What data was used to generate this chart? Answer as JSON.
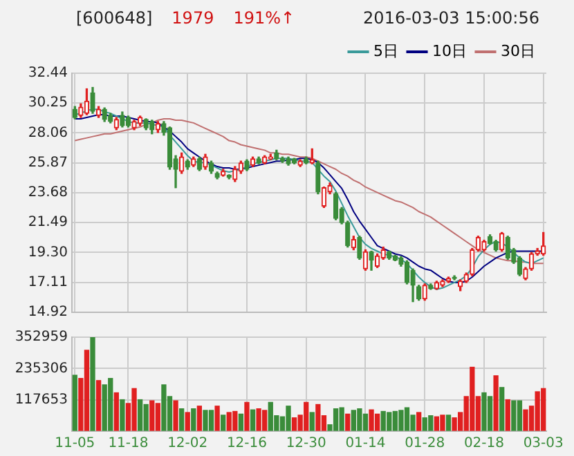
{
  "chart_data": [
    {
      "type": "candlestick",
      "title": "[600648]",
      "annotations": [
        "1979",
        "191%↑",
        "2016-03-03 15:00:56"
      ],
      "categories": [
        null,
        null,
        null,
        null,
        null,
        null,
        null,
        null,
        null,
        null,
        null,
        null,
        null,
        null,
        null,
        null,
        null,
        null,
        null,
        null,
        null,
        null,
        null,
        null,
        null,
        null,
        null,
        null,
        null,
        null,
        null,
        null,
        null,
        null,
        null,
        null,
        null,
        null,
        null,
        null,
        null,
        null,
        null,
        null,
        null,
        null,
        null,
        null,
        null,
        null,
        null,
        null,
        null,
        null,
        null,
        null,
        null,
        null,
        null,
        null,
        null,
        null,
        null,
        null,
        null,
        null,
        null,
        null,
        null,
        null,
        null,
        null,
        null,
        null,
        null,
        null,
        null,
        null,
        null,
        null
      ],
      "ohlc": [
        [
          29.8,
          30.0,
          29.1,
          29.2
        ],
        [
          29.35,
          30.2,
          29.2,
          29.95
        ],
        [
          29.5,
          31.3,
          29.4,
          30.4
        ],
        [
          31.0,
          31.4,
          29.5,
          29.65
        ],
        [
          29.35,
          30.0,
          29.2,
          29.8
        ],
        [
          29.8,
          29.9,
          28.9,
          29.05
        ],
        [
          29.35,
          29.5,
          28.8,
          28.9
        ],
        [
          28.44,
          29.2,
          28.3,
          29.05
        ],
        [
          29.35,
          29.6,
          28.5,
          28.6
        ],
        [
          29.2,
          29.3,
          28.5,
          28.6
        ],
        [
          28.44,
          29.0,
          28.3,
          28.9
        ],
        [
          28.75,
          29.3,
          28.6,
          29.2
        ],
        [
          29.05,
          29.1,
          28.3,
          28.44
        ],
        [
          28.9,
          29.0,
          28.0,
          28.3
        ],
        [
          28.3,
          28.9,
          28.1,
          28.75
        ],
        [
          28.75,
          28.9,
          27.9,
          28.1
        ],
        [
          28.44,
          28.5,
          25.4,
          25.56
        ],
        [
          26.17,
          26.4,
          24.05,
          25.4
        ],
        [
          25.26,
          26.6,
          25.1,
          26.3
        ],
        [
          26.0,
          26.1,
          25.4,
          25.56
        ],
        [
          25.7,
          26.3,
          25.6,
          26.17
        ],
        [
          26.17,
          26.3,
          25.3,
          25.4
        ],
        [
          25.56,
          26.5,
          25.4,
          26.3
        ],
        [
          25.86,
          26.0,
          25.1,
          25.26
        ],
        [
          25.1,
          25.2,
          24.7,
          24.8
        ],
        [
          24.96,
          25.4,
          24.9,
          25.26
        ],
        [
          24.96,
          25.0,
          24.7,
          24.8
        ],
        [
          24.65,
          25.6,
          24.5,
          25.4
        ],
        [
          25.26,
          26.0,
          25.1,
          25.86
        ],
        [
          26.0,
          26.1,
          25.3,
          25.4
        ],
        [
          25.7,
          26.3,
          25.6,
          26.17
        ],
        [
          26.17,
          26.3,
          25.8,
          25.86
        ],
        [
          25.86,
          26.4,
          25.8,
          26.3
        ],
        [
          26.17,
          26.5,
          26.1,
          26.3
        ],
        [
          26.6,
          26.8,
          26.1,
          26.17
        ],
        [
          26.2,
          26.3,
          25.9,
          26.0
        ],
        [
          26.17,
          26.3,
          25.7,
          25.8
        ],
        [
          26.17,
          26.2,
          25.8,
          25.86
        ],
        [
          25.7,
          26.1,
          25.6,
          26.0
        ],
        [
          26.17,
          26.3,
          25.8,
          25.86
        ],
        [
          25.86,
          26.9,
          25.8,
          26.1
        ],
        [
          25.86,
          26.0,
          23.6,
          23.75
        ],
        [
          22.7,
          24.1,
          22.6,
          24.05
        ],
        [
          23.75,
          24.4,
          23.6,
          24.2
        ],
        [
          23.6,
          23.7,
          21.7,
          21.8
        ],
        [
          22.5,
          22.6,
          21.4,
          21.5
        ],
        [
          21.5,
          21.6,
          19.7,
          19.8
        ],
        [
          19.65,
          20.5,
          19.5,
          20.26
        ],
        [
          20.4,
          20.5,
          18.8,
          18.9
        ],
        [
          18.1,
          19.5,
          18.0,
          19.35
        ],
        [
          19.35,
          19.4,
          18.0,
          18.75
        ],
        [
          18.3,
          19.2,
          18.2,
          19.05
        ],
        [
          18.9,
          19.7,
          18.8,
          19.5
        ],
        [
          19.35,
          19.4,
          18.8,
          18.9
        ],
        [
          19.05,
          19.1,
          18.7,
          18.75
        ],
        [
          18.9,
          19.0,
          18.3,
          18.45
        ],
        [
          18.6,
          18.7,
          17.0,
          17.1
        ],
        [
          18.0,
          18.1,
          15.7,
          16.9
        ],
        [
          16.8,
          16.9,
          15.8,
          15.9
        ],
        [
          15.9,
          17.0,
          15.8,
          16.9
        ],
        [
          16.9,
          17.0,
          16.6,
          16.65
        ],
        [
          16.65,
          17.2,
          16.6,
          17.1
        ],
        [
          16.9,
          17.3,
          16.8,
          17.2
        ],
        [
          17.2,
          17.5,
          17.1,
          17.4
        ],
        [
          17.5,
          17.6,
          17.3,
          17.4
        ],
        [
          16.8,
          17.3,
          16.5,
          17.2
        ],
        [
          17.2,
          17.8,
          17.1,
          17.7
        ],
        [
          17.7,
          19.6,
          17.6,
          19.5
        ],
        [
          19.5,
          20.5,
          19.4,
          20.4
        ],
        [
          19.5,
          20.2,
          19.4,
          20.1
        ],
        [
          20.47,
          20.6,
          19.9,
          19.96
        ],
        [
          20.1,
          20.2,
          19.4,
          19.5
        ],
        [
          19.5,
          20.77,
          19.4,
          20.7
        ],
        [
          20.4,
          20.5,
          18.8,
          18.9
        ],
        [
          19.5,
          19.6,
          18.5,
          18.6
        ],
        [
          18.9,
          19.0,
          17.6,
          17.7
        ],
        [
          17.4,
          18.2,
          17.3,
          18.1
        ],
        [
          18.1,
          19.3,
          18.0,
          19.2
        ],
        [
          19.2,
          19.6,
          19.1,
          19.42
        ],
        [
          19.2,
          20.77,
          19.1,
          19.79
        ]
      ],
      "colors": [
        "#3a8c3a",
        "#e02020",
        "#e02020",
        "#3a8c3a",
        "#e02020",
        "#3a8c3a",
        "#3a8c3a",
        "#e02020",
        "#3a8c3a",
        "#3a8c3a",
        "#e02020",
        "#e02020",
        "#3a8c3a",
        "#3a8c3a",
        "#e02020",
        "#3a8c3a",
        "#3a8c3a",
        "#3a8c3a",
        "#e02020",
        "#3a8c3a",
        "#e02020",
        "#3a8c3a",
        "#e02020",
        "#3a8c3a",
        "#3a8c3a",
        "#e02020",
        "#3a8c3a",
        "#e02020",
        "#e02020",
        "#3a8c3a",
        "#e02020",
        "#3a8c3a",
        "#e02020",
        "#e02020",
        "#3a8c3a",
        "#3a8c3a",
        "#3a8c3a",
        "#3a8c3a",
        "#e02020",
        "#3a8c3a",
        "#e02020",
        "#3a8c3a",
        "#e02020",
        "#e02020",
        "#3a8c3a",
        "#3a8c3a",
        "#3a8c3a",
        "#e02020",
        "#3a8c3a",
        "#e02020",
        "#3a8c3a",
        "#e02020",
        "#e02020",
        "#3a8c3a",
        "#3a8c3a",
        "#3a8c3a",
        "#3a8c3a",
        "#3a8c3a",
        "#3a8c3a",
        "#e02020",
        "#3a8c3a",
        "#e02020",
        "#e02020",
        "#e02020",
        "#3a8c3a",
        "#e02020",
        "#e02020",
        "#e02020",
        "#e02020",
        "#e02020",
        "#3a8c3a",
        "#3a8c3a",
        "#e02020",
        "#3a8c3a",
        "#3a8c3a",
        "#3a8c3a",
        "#e02020",
        "#e02020",
        "#e02020",
        "#e02020"
      ],
      "series": [
        {
          "type": "line",
          "name": "5日",
          "color": "#3a9a9a",
          "values": [
            29.4,
            29.5,
            29.7,
            29.8,
            29.8,
            29.6,
            29.5,
            29.3,
            29.1,
            28.9,
            28.8,
            28.8,
            28.8,
            28.7,
            28.6,
            28.5,
            27.9,
            27.4,
            26.9,
            26.4,
            26.0,
            25.9,
            25.9,
            25.7,
            25.5,
            25.3,
            25.2,
            25.3,
            25.4,
            25.6,
            25.8,
            25.9,
            26.0,
            26.1,
            26.2,
            26.2,
            26.2,
            26.1,
            26.0,
            26.0,
            25.9,
            25.4,
            24.9,
            24.5,
            23.8,
            22.9,
            22.0,
            21.2,
            20.4,
            19.9,
            19.6,
            19.4,
            19.2,
            19.1,
            19.0,
            18.8,
            18.5,
            18.0,
            17.5,
            17.1,
            16.8,
            16.6,
            16.7,
            16.9,
            17.1,
            17.3,
            17.6,
            18.2,
            19.0,
            19.5,
            19.9,
            20.1,
            20.0,
            19.7,
            19.3,
            18.9,
            18.6,
            18.5,
            18.7,
            18.9
          ]
        },
        {
          "type": "line",
          "name": "10日",
          "color": "#000080",
          "values": [
            29.1,
            29.1,
            29.2,
            29.3,
            29.4,
            29.4,
            29.3,
            29.3,
            29.3,
            29.2,
            29.1,
            29.0,
            28.9,
            28.9,
            28.8,
            28.5,
            28.2,
            27.8,
            27.4,
            26.9,
            26.6,
            26.3,
            26.0,
            25.8,
            25.6,
            25.5,
            25.5,
            25.4,
            25.4,
            25.5,
            25.6,
            25.7,
            25.8,
            25.9,
            26.0,
            26.0,
            26.1,
            26.1,
            26.2,
            26.2,
            26.1,
            25.9,
            25.5,
            25.0,
            24.5,
            24.0,
            23.2,
            22.3,
            21.6,
            21.0,
            20.4,
            19.8,
            19.6,
            19.4,
            19.2,
            19.1,
            18.9,
            18.6,
            18.3,
            18.1,
            18.0,
            17.7,
            17.4,
            17.2,
            17.1,
            17.1,
            17.2,
            17.5,
            17.9,
            18.3,
            18.6,
            18.9,
            19.1,
            19.3,
            19.4,
            19.4,
            19.4,
            19.4,
            19.4,
            19.4
          ]
        },
        {
          "type": "line",
          "name": "30日",
          "color": "#c07070",
          "values": [
            27.5,
            27.6,
            27.7,
            27.8,
            27.9,
            28.0,
            28.0,
            28.1,
            28.2,
            28.3,
            28.4,
            28.5,
            28.7,
            28.8,
            29.0,
            29.1,
            29.1,
            29.0,
            29.0,
            28.9,
            28.8,
            28.6,
            28.4,
            28.2,
            28.0,
            27.8,
            27.5,
            27.4,
            27.2,
            27.1,
            27.0,
            26.9,
            26.8,
            26.6,
            26.6,
            26.5,
            26.5,
            26.4,
            26.3,
            26.3,
            26.2,
            26.0,
            25.8,
            25.6,
            25.4,
            25.1,
            24.9,
            24.6,
            24.4,
            24.1,
            23.9,
            23.7,
            23.5,
            23.3,
            23.1,
            23.0,
            22.8,
            22.6,
            22.3,
            22.1,
            21.9,
            21.6,
            21.3,
            21.0,
            20.7,
            20.4,
            20.1,
            19.8,
            19.5,
            19.3,
            19.1,
            18.9,
            18.8,
            18.7,
            18.7,
            18.6,
            18.6,
            18.5,
            18.5,
            18.5
          ]
        }
      ],
      "ylim": [
        14.92,
        32.44
      ],
      "yticks": [
        14.92,
        17.11,
        {
          "value": 19.3,
          "label": "19.30"
        },
        21.49,
        23.68,
        25.87,
        28.06,
        30.25,
        32.44
      ],
      "grid": true,
      "tick_labels": "y",
      "legend": "top right"
    },
    {
      "type": "bar",
      "categories": [
        "11-05",
        null,
        null,
        null,
        null,
        null,
        null,
        null,
        null,
        "11-18",
        null,
        null,
        null,
        null,
        null,
        null,
        null,
        null,
        null,
        "12-02",
        null,
        null,
        null,
        null,
        null,
        null,
        null,
        null,
        null,
        "12-16",
        null,
        null,
        null,
        null,
        null,
        null,
        null,
        null,
        null,
        "12-30",
        null,
        null,
        null,
        null,
        null,
        null,
        null,
        null,
        null,
        "01-14",
        null,
        null,
        null,
        null,
        null,
        null,
        null,
        null,
        null,
        "01-28",
        null,
        null,
        null,
        null,
        null,
        null,
        null,
        null,
        null,
        "02-18",
        null,
        null,
        null,
        null,
        null,
        null,
        null,
        null,
        null,
        "03-03"
      ],
      "values": [
        210000,
        198000,
        304000,
        352000,
        190000,
        174000,
        198000,
        144000,
        118000,
        104000,
        160000,
        118000,
        100000,
        114000,
        104000,
        174000,
        130000,
        114000,
        84000,
        70000,
        84000,
        94000,
        78000,
        78000,
        94000,
        60000,
        70000,
        74000,
        64000,
        108000,
        80000,
        84000,
        78000,
        108000,
        58000,
        54000,
        94000,
        50000,
        60000,
        108000,
        70000,
        100000,
        58000,
        24000,
        84000,
        88000,
        64000,
        78000,
        84000,
        64000,
        80000,
        64000,
        74000,
        70000,
        74000,
        78000,
        88000,
        60000,
        70000,
        50000,
        58000,
        54000,
        60000,
        60000,
        50000,
        70000,
        130000,
        240000,
        130000,
        144000,
        130000,
        208000,
        164000,
        118000,
        114000,
        114000,
        80000,
        94000,
        148000,
        160000
      ],
      "colors": [
        "#3a8c3a",
        "#e02020",
        "#e02020",
        "#3a8c3a",
        "#e02020",
        "#3a8c3a",
        "#3a8c3a",
        "#e02020",
        "#3a8c3a",
        "#e02020",
        "#e02020",
        "#3a8c3a",
        "#3a8c3a",
        "#e02020",
        "#e02020",
        "#3a8c3a",
        "#3a8c3a",
        "#e02020",
        "#3a8c3a",
        "#e02020",
        "#3a8c3a",
        "#e02020",
        "#3a8c3a",
        "#3a8c3a",
        "#e02020",
        "#3a8c3a",
        "#e02020",
        "#e02020",
        "#3a8c3a",
        "#e02020",
        "#3a8c3a",
        "#e02020",
        "#e02020",
        "#3a8c3a",
        "#3a8c3a",
        "#3a8c3a",
        "#3a8c3a",
        "#e02020",
        "#e02020",
        "#e02020",
        "#3a8c3a",
        "#e02020",
        "#e02020",
        "#3a8c3a",
        "#3a8c3a",
        "#3a8c3a",
        "#e02020",
        "#3a8c3a",
        "#3a8c3a",
        "#3a8c3a",
        "#e02020",
        "#e02020",
        "#3a8c3a",
        "#3a8c3a",
        "#3a8c3a",
        "#3a8c3a",
        "#3a8c3a",
        "#3a8c3a",
        "#e02020",
        "#3a8c3a",
        "#3a8c3a",
        "#e02020",
        "#e02020",
        "#3a8c3a",
        "#e02020",
        "#e02020",
        "#e02020",
        "#e02020",
        "#e02020",
        "#3a8c3a",
        "#3a8c3a",
        "#e02020",
        "#3a8c3a",
        "#e02020",
        "#3a8c3a",
        "#3a8c3a",
        "#e02020",
        "#e02020",
        "#e02020",
        "#e02020"
      ],
      "ylim": [
        0,
        352959
      ],
      "yticks": [
        {
          "value": 0,
          "label": null
        },
        117653,
        235306,
        352959
      ],
      "grid": true
    }
  ]
}
